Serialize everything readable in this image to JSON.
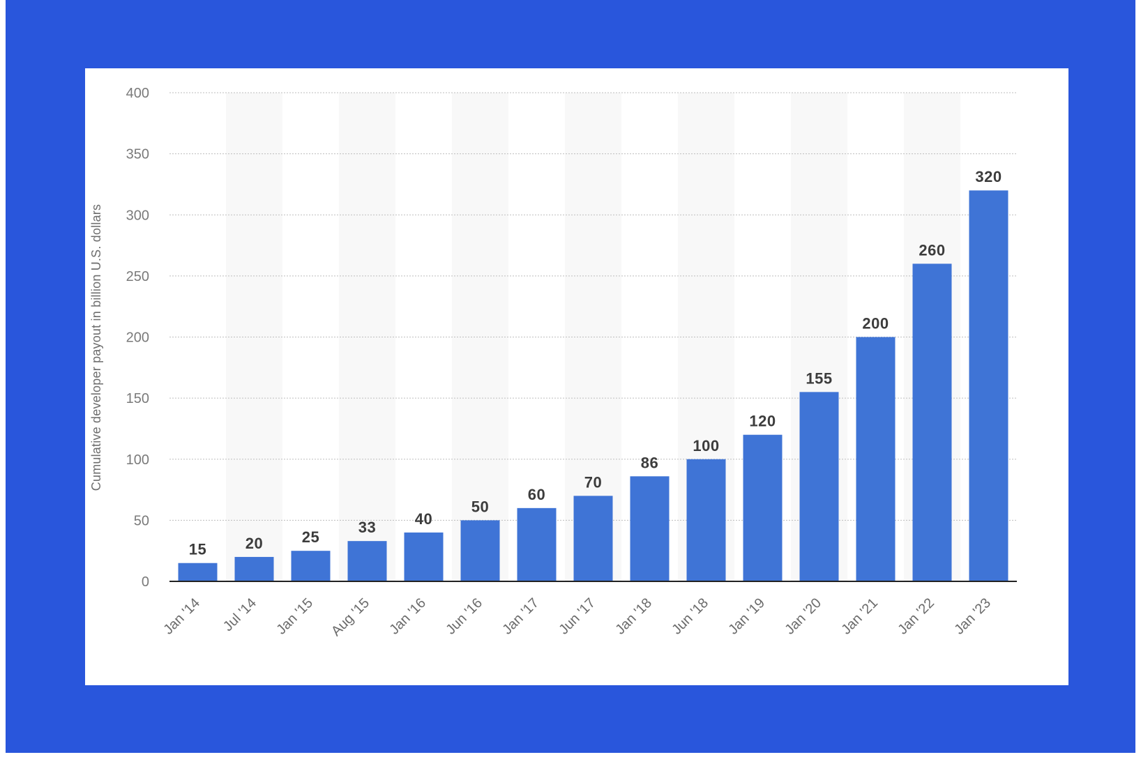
{
  "chart_data": {
    "type": "bar",
    "title": "",
    "xlabel": "",
    "ylabel": "Cumulative developer payout in billion U.S. dollars",
    "categories": [
      "Jan '14",
      "Jul '14",
      "Jan '15",
      "Aug '15",
      "Jan '16",
      "Jun '16",
      "Jan '17",
      "Jun '17",
      "Jan '18",
      "Jun '18",
      "Jan '19",
      "Jan '20",
      "Jan '21",
      "Jan '22",
      "Jan '23"
    ],
    "values": [
      15,
      20,
      25,
      33,
      40,
      50,
      60,
      70,
      86,
      100,
      120,
      155,
      200,
      260,
      320
    ],
    "ylim": [
      0,
      400
    ],
    "yticks": [
      0,
      50,
      100,
      150,
      200,
      250,
      300,
      350,
      400
    ],
    "grid": true,
    "colors": {
      "frame": "#2956dc",
      "bar": "#3f74d6",
      "band": "#f8f8f8",
      "grid": "#bdbdbd",
      "axis": "#222222"
    }
  }
}
